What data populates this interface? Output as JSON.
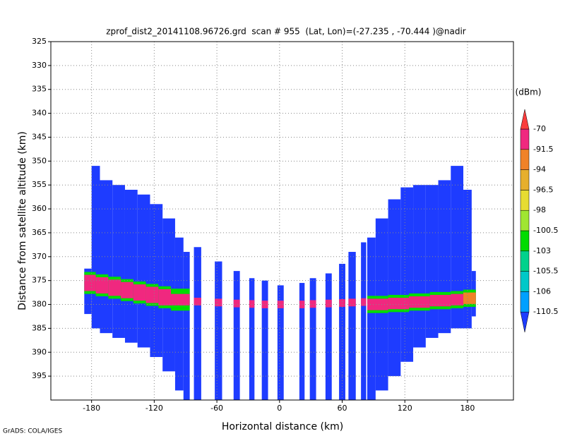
{
  "chart_data": {
    "type": "swath",
    "title": "zprof_dist2_20141108.96726.grd  scan # 955  (Lat, Lon)=(-27.235 , -70.444 )@nadir",
    "xlabel": "Horizontal distance (km)",
    "ylabel": "Distance from satellite altitude (km)",
    "footer": "GrADS: COLA/IGES",
    "xlim": [
      -219,
      224
    ],
    "ylim": [
      325,
      400
    ],
    "y_inverted": true,
    "grid": true,
    "xticks": [
      -180,
      -120,
      -60,
      0,
      60,
      120,
      180
    ],
    "yticks": [
      325,
      330,
      335,
      340,
      345,
      350,
      355,
      360,
      365,
      370,
      375,
      380,
      385,
      390,
      395
    ],
    "colorbar": {
      "label": "(dBm)",
      "levels": [
        -110.5,
        -106,
        -105.5,
        -103,
        -100.5,
        -98,
        -96.5,
        -94,
        -91.5,
        -70
      ],
      "colors": [
        "#1e3cff",
        "#00a0ff",
        "#00c8c8",
        "#00d28c",
        "#00dc00",
        "#a0e632",
        "#e6dc32",
        "#e6af2d",
        "#f08228",
        "#f0287f",
        "#fa3c3c"
      ]
    },
    "cells": [
      {
        "x": [
          -187,
          -180
        ],
        "y": [
          372.5,
          382
        ],
        "value": -110.5
      },
      {
        "x": [
          -180,
          -172
        ],
        "y": [
          351,
          385
        ],
        "value": -110.5
      },
      {
        "x": [
          -172,
          -160
        ],
        "y": [
          354,
          386
        ],
        "value": -110.5
      },
      {
        "x": [
          -160,
          -148
        ],
        "y": [
          355,
          387
        ],
        "value": -110.5
      },
      {
        "x": [
          -148,
          -136
        ],
        "y": [
          356,
          388
        ],
        "value": -110.5
      },
      {
        "x": [
          -136,
          -124
        ],
        "y": [
          357,
          389
        ],
        "value": -110.5
      },
      {
        "x": [
          -124,
          -112
        ],
        "y": [
          359,
          391
        ],
        "value": -110.5
      },
      {
        "x": [
          -112,
          -100
        ],
        "y": [
          362,
          394
        ],
        "value": -110.5
      },
      {
        "x": [
          -100,
          -92
        ],
        "y": [
          366,
          398
        ],
        "value": -110.5
      },
      {
        "x": [
          -92,
          -86
        ],
        "y": [
          369,
          400
        ],
        "value": -110.5
      },
      {
        "x": [
          -82,
          -75
        ],
        "y": [
          368,
          400
        ],
        "value": -110.5
      },
      {
        "x": [
          -62,
          -55
        ],
        "y": [
          371,
          400
        ],
        "value": -110.5
      },
      {
        "x": [
          -44,
          -38
        ],
        "y": [
          373,
          400
        ],
        "value": -110.5
      },
      {
        "x": [
          -29,
          -24
        ],
        "y": [
          374.5,
          400
        ],
        "value": -110.5
      },
      {
        "x": [
          -17,
          -11
        ],
        "y": [
          375,
          400
        ],
        "value": -110.5
      },
      {
        "x": [
          -2,
          4
        ],
        "y": [
          376,
          400
        ],
        "value": -110.5
      },
      {
        "x": [
          19,
          24
        ],
        "y": [
          375.5,
          400
        ],
        "value": -110.5
      },
      {
        "x": [
          29,
          35
        ],
        "y": [
          374.5,
          400
        ],
        "value": -110.5
      },
      {
        "x": [
          44,
          50
        ],
        "y": [
          373.5,
          400
        ],
        "value": -110.5
      },
      {
        "x": [
          57,
          63
        ],
        "y": [
          371.5,
          400
        ],
        "value": -110.5
      },
      {
        "x": [
          66,
          73
        ],
        "y": [
          369,
          400
        ],
        "value": -110.5
      },
      {
        "x": [
          78,
          83
        ],
        "y": [
          367,
          400
        ],
        "value": -110.5
      },
      {
        "x": [
          84,
          92
        ],
        "y": [
          366,
          400
        ],
        "value": -110.5
      },
      {
        "x": [
          92,
          104
        ],
        "y": [
          362,
          398
        ],
        "value": -110.5
      },
      {
        "x": [
          104,
          116
        ],
        "y": [
          358,
          395
        ],
        "value": -110.5
      },
      {
        "x": [
          116,
          128
        ],
        "y": [
          355.5,
          392
        ],
        "value": -110.5
      },
      {
        "x": [
          128,
          140
        ],
        "y": [
          355,
          389
        ],
        "value": -110.5
      },
      {
        "x": [
          140,
          152
        ],
        "y": [
          355,
          387
        ],
        "value": -110.5
      },
      {
        "x": [
          152,
          164
        ],
        "y": [
          354,
          386
        ],
        "value": -110.5
      },
      {
        "x": [
          164,
          176
        ],
        "y": [
          351,
          385
        ],
        "value": -110.5
      },
      {
        "x": [
          176,
          184
        ],
        "y": [
          356,
          385
        ],
        "value": -110.5
      },
      {
        "x": [
          184,
          188
        ],
        "y": [
          373,
          382.5
        ],
        "value": -110.5
      },
      {
        "x": [
          -187,
          -176
        ],
        "y": [
          373.2,
          377.8
        ],
        "value": -101
      },
      {
        "x": [
          -176,
          -164
        ],
        "y": [
          373.7,
          378.3
        ],
        "value": -101
      },
      {
        "x": [
          -164,
          -152
        ],
        "y": [
          374.2,
          378.8
        ],
        "value": -101
      },
      {
        "x": [
          -152,
          -140
        ],
        "y": [
          374.7,
          379.3
        ],
        "value": -101
      },
      {
        "x": [
          -140,
          -128
        ],
        "y": [
          375.2,
          379.8
        ],
        "value": -101
      },
      {
        "x": [
          -128,
          -116
        ],
        "y": [
          375.7,
          380.3
        ],
        "value": -101
      },
      {
        "x": [
          -116,
          -104
        ],
        "y": [
          376.2,
          380.8
        ],
        "value": -101
      },
      {
        "x": [
          -104,
          -86
        ],
        "y": [
          376.7,
          381.3
        ],
        "value": -101
      },
      {
        "x": [
          -187,
          -176
        ],
        "y": [
          373.8,
          377.2
        ],
        "value": -85
      },
      {
        "x": [
          -176,
          -164
        ],
        "y": [
          374.3,
          377.7
        ],
        "value": -85
      },
      {
        "x": [
          -164,
          -152
        ],
        "y": [
          374.8,
          378.2
        ],
        "value": -85
      },
      {
        "x": [
          -152,
          -140
        ],
        "y": [
          375.3,
          378.7
        ],
        "value": -85
      },
      {
        "x": [
          -140,
          -128
        ],
        "y": [
          375.8,
          379.2
        ],
        "value": -85
      },
      {
        "x": [
          -128,
          -116
        ],
        "y": [
          376.3,
          379.7
        ],
        "value": -85
      },
      {
        "x": [
          -116,
          -104
        ],
        "y": [
          376.8,
          380.2
        ],
        "value": -85
      },
      {
        "x": [
          -104,
          -86
        ],
        "y": [
          377.8,
          380.2
        ],
        "value": -85
      },
      {
        "x": [
          -82,
          -75
        ],
        "y": [
          378.6,
          380.2
        ],
        "value": -85
      },
      {
        "x": [
          -62,
          -55
        ],
        "y": [
          378.8,
          380.4
        ],
        "value": -85
      },
      {
        "x": [
          -44,
          -38
        ],
        "y": [
          379,
          380.6
        ],
        "value": -85
      },
      {
        "x": [
          -29,
          -24
        ],
        "y": [
          379.1,
          380.7
        ],
        "value": -85
      },
      {
        "x": [
          -17,
          -11
        ],
        "y": [
          379.2,
          380.8
        ],
        "value": -85
      },
      {
        "x": [
          -2,
          4
        ],
        "y": [
          379.2,
          380.8
        ],
        "value": -85
      },
      {
        "x": [
          19,
          24
        ],
        "y": [
          379.2,
          380.8
        ],
        "value": -85
      },
      {
        "x": [
          29,
          35
        ],
        "y": [
          379.1,
          380.7
        ],
        "value": -85
      },
      {
        "x": [
          44,
          50
        ],
        "y": [
          379,
          380.6
        ],
        "value": -85
      },
      {
        "x": [
          57,
          63
        ],
        "y": [
          378.9,
          380.5
        ],
        "value": -85
      },
      {
        "x": [
          66,
          73
        ],
        "y": [
          378.8,
          380.4
        ],
        "value": -85
      },
      {
        "x": [
          78,
          83
        ],
        "y": [
          378.7,
          380.3
        ],
        "value": -85
      },
      {
        "x": [
          84,
          104
        ],
        "y": [
          378.2,
          381.8
        ],
        "value": -101
      },
      {
        "x": [
          104,
          124
        ],
        "y": [
          378,
          381.6
        ],
        "value": -101
      },
      {
        "x": [
          124,
          144
        ],
        "y": [
          377.7,
          381.3
        ],
        "value": -101
      },
      {
        "x": [
          144,
          164
        ],
        "y": [
          377.4,
          381
        ],
        "value": -101
      },
      {
        "x": [
          164,
          176
        ],
        "y": [
          377.2,
          380.8
        ],
        "value": -101
      },
      {
        "x": [
          176,
          188
        ],
        "y": [
          376.9,
          380.5
        ],
        "value": -101
      },
      {
        "x": [
          84,
          104
        ],
        "y": [
          378.8,
          381.2
        ],
        "value": -85
      },
      {
        "x": [
          104,
          124
        ],
        "y": [
          378.6,
          381
        ],
        "value": -85
      },
      {
        "x": [
          124,
          144
        ],
        "y": [
          378.3,
          380.7
        ],
        "value": -85
      },
      {
        "x": [
          144,
          164
        ],
        "y": [
          378,
          380.4
        ],
        "value": -85
      },
      {
        "x": [
          164,
          176
        ],
        "y": [
          377.8,
          380.2
        ],
        "value": -85
      },
      {
        "x": [
          176,
          188
        ],
        "y": [
          377.5,
          379.9
        ],
        "value": -93
      }
    ]
  }
}
